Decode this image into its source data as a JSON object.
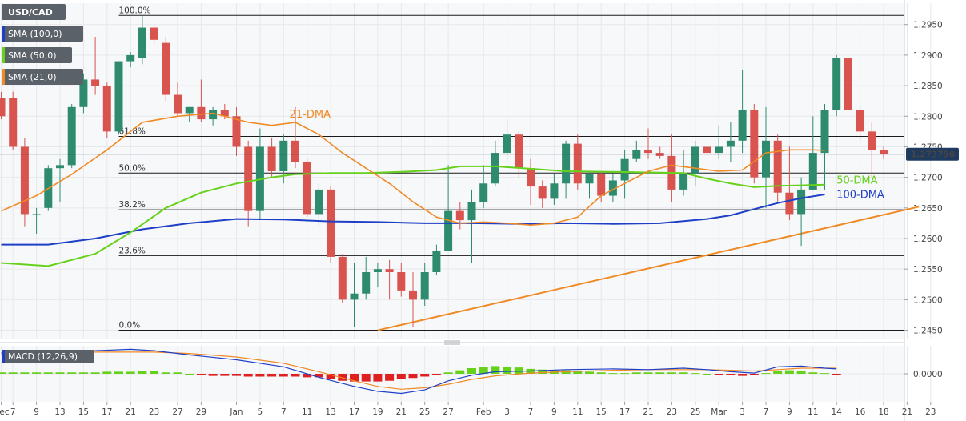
{
  "chart_data": {
    "type": "candlestick",
    "symbol": "USD/CAD",
    "indicator_labels": [
      "SMA (100,0)",
      "SMA (50,0)",
      "SMA (21,0)"
    ],
    "indicator_colors": [
      "#1f3fc6",
      "#66d11a",
      "#f08a24"
    ],
    "last_price": "1.273790",
    "ylim": [
      1.2435,
      1.2985
    ],
    "y_ticks": [
      "1.2450",
      "1.2500",
      "1.2550",
      "1.2600",
      "1.2650",
      "1.2700",
      "1.2750",
      "1.2800",
      "1.2850",
      "1.2900",
      "1.2950"
    ],
    "x_ticks": [
      {
        "i": 0,
        "label": "Dec"
      },
      {
        "i": 1,
        "label": "7"
      },
      {
        "i": 3,
        "label": "9"
      },
      {
        "i": 5,
        "label": "13"
      },
      {
        "i": 7,
        "label": "15"
      },
      {
        "i": 9,
        "label": "17"
      },
      {
        "i": 11,
        "label": "21"
      },
      {
        "i": 13,
        "label": "23"
      },
      {
        "i": 15,
        "label": "27"
      },
      {
        "i": 17,
        "label": "29"
      },
      {
        "i": 20,
        "label": "Jan"
      },
      {
        "i": 22,
        "label": "5"
      },
      {
        "i": 24,
        "label": "7"
      },
      {
        "i": 26,
        "label": "11"
      },
      {
        "i": 28,
        "label": "13"
      },
      {
        "i": 30,
        "label": "17"
      },
      {
        "i": 32,
        "label": "19"
      },
      {
        "i": 34,
        "label": "21"
      },
      {
        "i": 36,
        "label": "25"
      },
      {
        "i": 38,
        "label": "27"
      },
      {
        "i": 41,
        "label": "Feb"
      },
      {
        "i": 43,
        "label": "3"
      },
      {
        "i": 45,
        "label": "7"
      },
      {
        "i": 47,
        "label": "9"
      },
      {
        "i": 49,
        "label": "11"
      },
      {
        "i": 51,
        "label": "15"
      },
      {
        "i": 53,
        "label": "17"
      },
      {
        "i": 55,
        "label": "21"
      },
      {
        "i": 57,
        "label": "23"
      },
      {
        "i": 59,
        "label": "25"
      },
      {
        "i": 61,
        "label": "Mar"
      },
      {
        "i": 63,
        "label": "3"
      },
      {
        "i": 65,
        "label": "7"
      },
      {
        "i": 67,
        "label": "9"
      },
      {
        "i": 69,
        "label": "11"
      },
      {
        "i": 71,
        "label": "14"
      },
      {
        "i": 73,
        "label": "16"
      },
      {
        "i": 75,
        "label": "18"
      },
      {
        "i": 77,
        "label": "21"
      },
      {
        "i": 79,
        "label": "23"
      }
    ],
    "candles": [
      {
        "o": 1.283,
        "h": 1.284,
        "l": 1.2795,
        "c": 1.28
      },
      {
        "o": 1.283,
        "h": 1.284,
        "l": 1.2745,
        "c": 1.275
      },
      {
        "o": 1.275,
        "h": 1.2765,
        "l": 1.262,
        "c": 1.264
      },
      {
        "o": 1.264,
        "h": 1.265,
        "l": 1.2608,
        "c": 1.264
      },
      {
        "o": 1.265,
        "h": 1.272,
        "l": 1.2645,
        "c": 1.2715
      },
      {
        "o": 1.2715,
        "h": 1.273,
        "l": 1.266,
        "c": 1.272
      },
      {
        "o": 1.272,
        "h": 1.282,
        "l": 1.2715,
        "c": 1.2815
      },
      {
        "o": 1.2815,
        "h": 1.287,
        "l": 1.2805,
        "c": 1.286
      },
      {
        "o": 1.286,
        "h": 1.293,
        "l": 1.2835,
        "c": 1.285
      },
      {
        "o": 1.285,
        "h": 1.2855,
        "l": 1.2765,
        "c": 1.2775
      },
      {
        "o": 1.2775,
        "h": 1.289,
        "l": 1.277,
        "c": 1.289
      },
      {
        "o": 1.289,
        "h": 1.2905,
        "l": 1.288,
        "c": 1.29
      },
      {
        "o": 1.2895,
        "h": 1.2965,
        "l": 1.2885,
        "c": 1.2945
      },
      {
        "o": 1.2945,
        "h": 1.295,
        "l": 1.292,
        "c": 1.2925
      },
      {
        "o": 1.292,
        "h": 1.293,
        "l": 1.2825,
        "c": 1.2835
      },
      {
        "o": 1.2835,
        "h": 1.2855,
        "l": 1.28,
        "c": 1.2805
      },
      {
        "o": 1.2805,
        "h": 1.2815,
        "l": 1.279,
        "c": 1.2815
      },
      {
        "o": 1.2815,
        "h": 1.286,
        "l": 1.279,
        "c": 1.2795
      },
      {
        "o": 1.2795,
        "h": 1.2815,
        "l": 1.2785,
        "c": 1.281
      },
      {
        "o": 1.281,
        "h": 1.282,
        "l": 1.2795,
        "c": 1.28
      },
      {
        "o": 1.28,
        "h": 1.2815,
        "l": 1.2735,
        "c": 1.275
      },
      {
        "o": 1.275,
        "h": 1.276,
        "l": 1.262,
        "c": 1.2645
      },
      {
        "o": 1.2645,
        "h": 1.278,
        "l": 1.263,
        "c": 1.275
      },
      {
        "o": 1.275,
        "h": 1.2765,
        "l": 1.27,
        "c": 1.271
      },
      {
        "o": 1.271,
        "h": 1.277,
        "l": 1.269,
        "c": 1.276
      },
      {
        "o": 1.276,
        "h": 1.2815,
        "l": 1.2715,
        "c": 1.2725
      },
      {
        "o": 1.2725,
        "h": 1.273,
        "l": 1.2635,
        "c": 1.264
      },
      {
        "o": 1.264,
        "h": 1.269,
        "l": 1.262,
        "c": 1.268
      },
      {
        "o": 1.268,
        "h": 1.2685,
        "l": 1.256,
        "c": 1.257
      },
      {
        "o": 1.257,
        "h": 1.2575,
        "l": 1.2495,
        "c": 1.25
      },
      {
        "o": 1.25,
        "h": 1.256,
        "l": 1.2455,
        "c": 1.251
      },
      {
        "o": 1.251,
        "h": 1.257,
        "l": 1.25,
        "c": 1.2545
      },
      {
        "o": 1.2545,
        "h": 1.256,
        "l": 1.252,
        "c": 1.255
      },
      {
        "o": 1.255,
        "h": 1.2565,
        "l": 1.25,
        "c": 1.2545
      },
      {
        "o": 1.2545,
        "h": 1.256,
        "l": 1.2505,
        "c": 1.2515
      },
      {
        "o": 1.2515,
        "h": 1.2545,
        "l": 1.2455,
        "c": 1.25
      },
      {
        "o": 1.25,
        "h": 1.256,
        "l": 1.249,
        "c": 1.2545
      },
      {
        "o": 1.2545,
        "h": 1.259,
        "l": 1.254,
        "c": 1.258
      },
      {
        "o": 1.258,
        "h": 1.272,
        "l": 1.258,
        "c": 1.2645
      },
      {
        "o": 1.2645,
        "h": 1.266,
        "l": 1.2615,
        "c": 1.263
      },
      {
        "o": 1.263,
        "h": 1.268,
        "l": 1.256,
        "c": 1.266
      },
      {
        "o": 1.266,
        "h": 1.272,
        "l": 1.265,
        "c": 1.269
      },
      {
        "o": 1.269,
        "h": 1.276,
        "l": 1.2685,
        "c": 1.274
      },
      {
        "o": 1.274,
        "h": 1.2795,
        "l": 1.2725,
        "c": 1.277
      },
      {
        "o": 1.277,
        "h": 1.2775,
        "l": 1.27,
        "c": 1.2715
      },
      {
        "o": 1.2715,
        "h": 1.273,
        "l": 1.2655,
        "c": 1.2685
      },
      {
        "o": 1.2685,
        "h": 1.2695,
        "l": 1.265,
        "c": 1.2665
      },
      {
        "o": 1.2665,
        "h": 1.2705,
        "l": 1.2655,
        "c": 1.269
      },
      {
        "o": 1.269,
        "h": 1.276,
        "l": 1.2665,
        "c": 1.2755
      },
      {
        "o": 1.2755,
        "h": 1.277,
        "l": 1.268,
        "c": 1.269
      },
      {
        "o": 1.269,
        "h": 1.271,
        "l": 1.2665,
        "c": 1.2705
      },
      {
        "o": 1.2705,
        "h": 1.271,
        "l": 1.266,
        "c": 1.267
      },
      {
        "o": 1.267,
        "h": 1.2705,
        "l": 1.266,
        "c": 1.2695
      },
      {
        "o": 1.2695,
        "h": 1.2745,
        "l": 1.2665,
        "c": 1.273
      },
      {
        "o": 1.273,
        "h": 1.276,
        "l": 1.2725,
        "c": 1.2745
      },
      {
        "o": 1.2745,
        "h": 1.278,
        "l": 1.273,
        "c": 1.274
      },
      {
        "o": 1.274,
        "h": 1.275,
        "l": 1.273,
        "c": 1.2735
      },
      {
        "o": 1.2735,
        "h": 1.277,
        "l": 1.266,
        "c": 1.268
      },
      {
        "o": 1.268,
        "h": 1.2745,
        "l": 1.267,
        "c": 1.2705
      },
      {
        "o": 1.2705,
        "h": 1.276,
        "l": 1.2685,
        "c": 1.275
      },
      {
        "o": 1.275,
        "h": 1.2765,
        "l": 1.271,
        "c": 1.274
      },
      {
        "o": 1.274,
        "h": 1.2785,
        "l": 1.273,
        "c": 1.275
      },
      {
        "o": 1.275,
        "h": 1.279,
        "l": 1.2725,
        "c": 1.276
      },
      {
        "o": 1.276,
        "h": 1.2875,
        "l": 1.274,
        "c": 1.281
      },
      {
        "o": 1.281,
        "h": 1.282,
        "l": 1.269,
        "c": 1.27
      },
      {
        "o": 1.27,
        "h": 1.2815,
        "l": 1.265,
        "c": 1.276
      },
      {
        "o": 1.276,
        "h": 1.277,
        "l": 1.266,
        "c": 1.2675
      },
      {
        "o": 1.2675,
        "h": 1.275,
        "l": 1.263,
        "c": 1.264
      },
      {
        "o": 1.264,
        "h": 1.27,
        "l": 1.2588,
        "c": 1.268
      },
      {
        "o": 1.268,
        "h": 1.28,
        "l": 1.268,
        "c": 1.274
      },
      {
        "o": 1.274,
        "h": 1.282,
        "l": 1.268,
        "c": 1.281
      },
      {
        "o": 1.281,
        "h": 1.29,
        "l": 1.28,
        "c": 1.2895
      },
      {
        "o": 1.2895,
        "h": 1.2895,
        "l": 1.281,
        "c": 1.281
      },
      {
        "o": 1.281,
        "h": 1.2815,
        "l": 1.276,
        "c": 1.2775
      },
      {
        "o": 1.2775,
        "h": 1.279,
        "l": 1.27,
        "c": 1.2745
      },
      {
        "o": 1.2745,
        "h": 1.275,
        "l": 1.273,
        "c": 1.2738
      }
    ],
    "bull_color": "#2e8b6e",
    "bear_color": "#d9534f",
    "fib_levels": [
      {
        "label": "100.0%",
        "value": 1.2965
      },
      {
        "label": "61.8%",
        "value": 1.2767
      },
      {
        "label": "50.0%",
        "value": 1.2707
      },
      {
        "label": "38.2%",
        "value": 1.2647
      },
      {
        "label": "23.6%",
        "value": 1.2572
      },
      {
        "label": "0.0%",
        "value": 1.245
      }
    ],
    "trendline": {
      "from": {
        "i": 32,
        "v": 1.245
      },
      "to": {
        "i": 78,
        "v": 1.2652
      },
      "color": "#f08a24"
    },
    "sma21": [
      [
        0,
        1.2645
      ],
      [
        3,
        1.267
      ],
      [
        6,
        1.2705
      ],
      [
        9,
        1.2745
      ],
      [
        12,
        1.279
      ],
      [
        15,
        1.28
      ],
      [
        18,
        1.2805
      ],
      [
        21,
        1.279
      ],
      [
        23,
        1.2785
      ],
      [
        25,
        1.279
      ],
      [
        27,
        1.277
      ],
      [
        29,
        1.274
      ],
      [
        31,
        1.2715
      ],
      [
        33,
        1.269
      ],
      [
        35,
        1.266
      ],
      [
        37,
        1.2635
      ],
      [
        39,
        1.2625
      ],
      [
        41,
        1.2627
      ],
      [
        43,
        1.2625
      ],
      [
        45,
        1.2622
      ],
      [
        47,
        1.2625
      ],
      [
        49,
        1.2635
      ],
      [
        51,
        1.267
      ],
      [
        53,
        1.269
      ],
      [
        55,
        1.271
      ],
      [
        57,
        1.272
      ],
      [
        59,
        1.2715
      ],
      [
        61,
        1.271
      ],
      [
        63,
        1.2712
      ],
      [
        65,
        1.274
      ],
      [
        67,
        1.2745
      ],
      [
        69,
        1.2745
      ],
      [
        70,
        1.2744
      ]
    ],
    "sma50": [
      [
        0,
        1.256
      ],
      [
        4,
        1.2555
      ],
      [
        8,
        1.2575
      ],
      [
        11,
        1.261
      ],
      [
        14,
        1.265
      ],
      [
        17,
        1.2675
      ],
      [
        20,
        1.269
      ],
      [
        23,
        1.27
      ],
      [
        25,
        1.2705
      ],
      [
        28,
        1.2707
      ],
      [
        31,
        1.2707
      ],
      [
        34,
        1.2709
      ],
      [
        37,
        1.2712
      ],
      [
        39,
        1.2718
      ],
      [
        42,
        1.2718
      ],
      [
        45,
        1.2714
      ],
      [
        48,
        1.271
      ],
      [
        52,
        1.2709
      ],
      [
        55,
        1.2708
      ],
      [
        58,
        1.2707
      ],
      [
        60,
        1.2698
      ],
      [
        62,
        1.269
      ],
      [
        64,
        1.2684
      ],
      [
        66,
        1.2686
      ],
      [
        68,
        1.2687
      ],
      [
        70,
        1.2688
      ]
    ],
    "sma100": [
      [
        0,
        1.259
      ],
      [
        4,
        1.259
      ],
      [
        8,
        1.26
      ],
      [
        12,
        1.2615
      ],
      [
        16,
        1.2625
      ],
      [
        20,
        1.2632
      ],
      [
        24,
        1.2631
      ],
      [
        28,
        1.2628
      ],
      [
        32,
        1.2627
      ],
      [
        36,
        1.2625
      ],
      [
        40,
        1.2625
      ],
      [
        44,
        1.2624
      ],
      [
        48,
        1.2625
      ],
      [
        52,
        1.2624
      ],
      [
        56,
        1.2625
      ],
      [
        60,
        1.2632
      ],
      [
        62,
        1.2638
      ],
      [
        64,
        1.2648
      ],
      [
        66,
        1.2658
      ],
      [
        68,
        1.2666
      ],
      [
        70,
        1.2672
      ]
    ],
    "annotations": [
      {
        "text": "21-DMA",
        "i": 24.5,
        "v": 1.2798,
        "color": "#f08a24"
      },
      {
        "text": "50-DMA",
        "i": 71,
        "v": 1.269,
        "color": "#66d11a"
      },
      {
        "text": "100-DMA",
        "i": 71,
        "v": 1.2666,
        "color": "#1f3fc6"
      }
    ],
    "macd": {
      "label": "MACD (12,26,9)",
      "y_ticks": [
        "0.0000"
      ],
      "ylim": [
        -0.004,
        0.004
      ],
      "macd_color": "#1f3fc6",
      "signal_color": "#f08a24",
      "pos_color": "#66d11a",
      "neg_color": "#e02020",
      "hist": [
        0.0002,
        0.0002,
        0.0002,
        0.0002,
        0.0002,
        0.0002,
        0.0002,
        0.0002,
        0.0002,
        0.0003,
        0.0003,
        0.0003,
        0.0004,
        0.0004,
        0.0002,
        0.0002,
        0.0,
        -0.0002,
        -0.0003,
        -0.0003,
        -0.0003,
        -0.0004,
        -0.0004,
        -0.0004,
        -0.0004,
        -0.0004,
        -0.0005,
        -0.0005,
        -0.0008,
        -0.001,
        -0.0011,
        -0.0011,
        -0.0011,
        -0.001,
        -0.0008,
        -0.0006,
        -0.0004,
        -0.0002,
        0.0002,
        0.0005,
        0.0008,
        0.001,
        0.0011,
        0.001,
        0.0009,
        0.0007,
        0.0006,
        0.0005,
        0.0005,
        0.0004,
        0.0003,
        0.0002,
        0.0001,
        0.0001,
        0.0002,
        0.0002,
        0.0002,
        0.0002,
        0.0002,
        0.0001,
        0.0,
        -0.0001,
        -0.0002,
        -0.0003,
        -0.0002,
        0.0001,
        0.0004,
        0.0005,
        0.0004,
        0.0002,
        0.0001,
        -0.0001
      ],
      "macd_line": [
        [
          0,
          0.003
        ],
        [
          4,
          0.0032
        ],
        [
          8,
          0.0033
        ],
        [
          11,
          0.0035
        ],
        [
          13,
          0.0033
        ],
        [
          16,
          0.0027
        ],
        [
          20,
          0.002
        ],
        [
          24,
          0.001
        ],
        [
          27,
          -0.0005
        ],
        [
          30,
          -0.0018
        ],
        [
          32,
          -0.0025
        ],
        [
          34,
          -0.0028
        ],
        [
          36,
          -0.0023
        ],
        [
          38,
          -0.001
        ],
        [
          40,
          -0.0002
        ],
        [
          42,
          0.0003
        ],
        [
          45,
          0.0004
        ],
        [
          48,
          0.0006
        ],
        [
          52,
          0.0007
        ],
        [
          55,
          0.0006
        ],
        [
          58,
          0.0008
        ],
        [
          60,
          0.0006
        ],
        [
          62,
          0.0003
        ],
        [
          64,
          0.0001
        ],
        [
          66,
          0.001
        ],
        [
          68,
          0.0011
        ],
        [
          70,
          0.0008
        ],
        [
          71,
          0.0007
        ]
      ],
      "signal_line": [
        [
          0,
          0.0028
        ],
        [
          4,
          0.003
        ],
        [
          8,
          0.0031
        ],
        [
          11,
          0.0031
        ],
        [
          13,
          0.0031
        ],
        [
          16,
          0.0029
        ],
        [
          20,
          0.0024
        ],
        [
          24,
          0.0015
        ],
        [
          27,
          0.0003
        ],
        [
          30,
          -0.001
        ],
        [
          32,
          -0.0018
        ],
        [
          34,
          -0.0022
        ],
        [
          36,
          -0.002
        ],
        [
          38,
          -0.0015
        ],
        [
          40,
          -0.0008
        ],
        [
          42,
          -0.0003
        ],
        [
          45,
          0.0001
        ],
        [
          48,
          0.0003
        ],
        [
          52,
          0.0005
        ],
        [
          55,
          0.0006
        ],
        [
          58,
          0.0006
        ],
        [
          60,
          0.0006
        ],
        [
          62,
          0.0005
        ],
        [
          64,
          0.0004
        ],
        [
          66,
          0.0006
        ],
        [
          68,
          0.0008
        ],
        [
          70,
          0.0008
        ],
        [
          71,
          0.0008
        ]
      ]
    }
  }
}
